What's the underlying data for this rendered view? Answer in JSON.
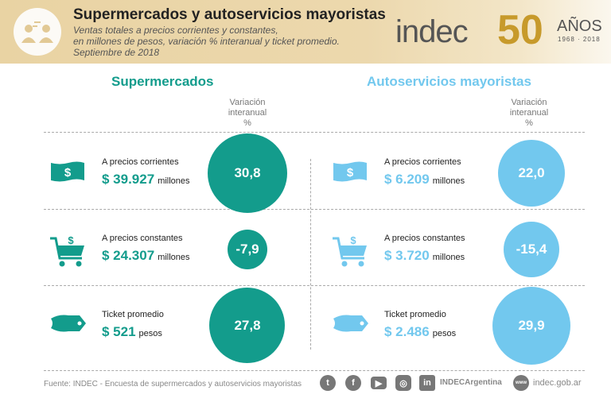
{
  "header": {
    "title": "Supermercados y autoservicios mayoristas",
    "subtitle_lines": [
      "Ventas totales a precios corrientes y constantes,",
      "en millones de pesos, variación % interanual y ticket promedio.",
      "Septiembre de 2018"
    ],
    "logo": "indec",
    "anniversary": "50",
    "anos": "AÑOS",
    "years": "1968 · 2018"
  },
  "colors": {
    "supermercados": "#139c8c",
    "mayoristas": "#72c8ee"
  },
  "sections": [
    {
      "title": "Supermercados",
      "var_header": [
        "Variación",
        "interanual",
        "%"
      ],
      "rows": [
        {
          "icon": "banknote-icon",
          "label": "A precios corrientes",
          "amount": "$ 39.927",
          "unit": "millones",
          "variation": "30,8"
        },
        {
          "icon": "shopping-cart-icon",
          "label": "A precios constantes",
          "amount": "$ 24.307",
          "unit": "millones",
          "variation": "-7,9"
        },
        {
          "icon": "price-tag-icon",
          "label": "Ticket promedio",
          "amount": "$ 521",
          "unit": "pesos",
          "variation": "27,8"
        }
      ]
    },
    {
      "title": "Autoservicios mayoristas",
      "var_header": [
        "Variación",
        "interanual",
        "%"
      ],
      "rows": [
        {
          "icon": "banknote-icon",
          "label": "A precios corrientes",
          "amount": "$ 6.209",
          "unit": "millones",
          "variation": "22,0"
        },
        {
          "icon": "shopping-cart-icon",
          "label": "A precios constantes",
          "amount": "$ 3.720",
          "unit": "millones",
          "variation": "-15,4"
        },
        {
          "icon": "price-tag-icon",
          "label": "Ticket promedio",
          "amount": "$ 2.486",
          "unit": "pesos",
          "variation": "29,9"
        }
      ]
    }
  ],
  "footer": {
    "source": "Fuente: INDEC - Encuesta de supermercados y autoservicios mayoristas",
    "social_handle": "INDECArgentina",
    "website": "indec.gob.ar",
    "www": "www",
    "social": [
      "twitter-icon",
      "facebook-icon",
      "youtube-icon",
      "instagram-icon",
      "linkedin-icon"
    ]
  }
}
